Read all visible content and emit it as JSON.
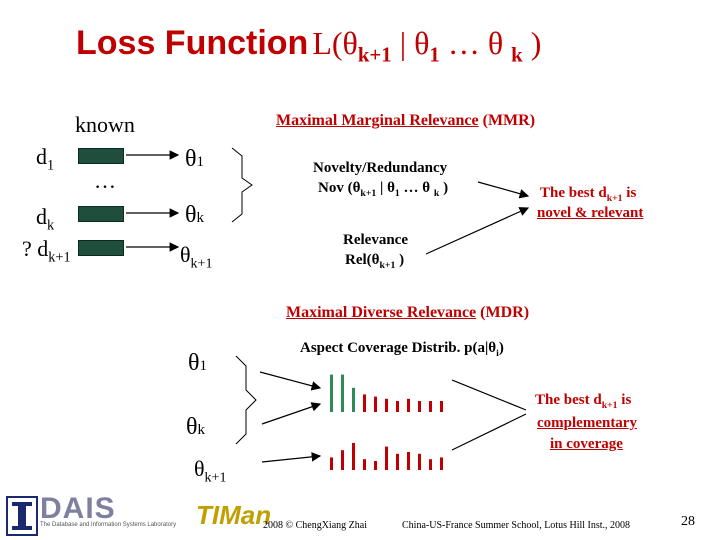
{
  "title": {
    "prefix": "Loss Function",
    "formula_open": "L(θ",
    "sub1": "k+1",
    "mid": "| θ",
    "sub2": "1",
    "dots": "… θ",
    "sub3": "k",
    "close": ")"
  },
  "left": {
    "known": "known",
    "d1": "d",
    "d1_sub": "1",
    "dots": "…",
    "dk": "d",
    "dk_sub": "k",
    "dk1_prefix": "? d",
    "dk1_sub": "k+1"
  },
  "thetas_top": {
    "t1": "θ",
    "t1_sub": "1",
    "tk": "θ",
    "tk_sub": "k",
    "tk1": "θ",
    "tk1_sub": "k+1"
  },
  "mmr": {
    "heading": "Maximal Marginal Relevance",
    "heading_abbr": "(MMR)",
    "novelty_line1": "Novelty/Redundancy",
    "novelty_line2_a": "Nov (θ",
    "novelty_line2_sub1": "k+1",
    "novelty_line2_b": "| θ",
    "novelty_line2_sub2": "1",
    "novelty_line2_c": "… θ",
    "novelty_line2_sub3": "k",
    "novelty_line2_d": ")",
    "relevance_line1": "Relevance",
    "relevance_line2_a": "Rel(θ",
    "relevance_line2_sub": "k+1",
    "relevance_line2_b": ")",
    "best_line1_a": "The best d",
    "best_line1_sub": "k+1",
    "best_line1_b": "is",
    "best_line2": "novel & relevant"
  },
  "mdr": {
    "heading": "Maximal Diverse Relevance",
    "heading_abbr": "(MDR)",
    "aspect_a": "Aspect Coverage Distrib.  p(a|θ",
    "aspect_sub": "i",
    "aspect_b": ")",
    "t1": "θ",
    "t1_sub": "1",
    "tk": "θ",
    "tk_sub": "k",
    "tk1": "θ",
    "tk1_sub": "k+1",
    "best_line1_a": "The best d",
    "best_line1_sub": "k+1",
    "best_line1_b": "is",
    "best_line2": "complementary",
    "best_line3": "in coverage",
    "bars_top": [
      0.85,
      0.85,
      0.55,
      0.4,
      0.35,
      0.3,
      0.25,
      0.3,
      0.25,
      0.25,
      0.25
    ],
    "bars_bottom": [
      0.35,
      0.55,
      0.75,
      0.3,
      0.25,
      0.65,
      0.45,
      0.5,
      0.45,
      0.3,
      0.35
    ]
  },
  "footer": {
    "logo1": "DAIS",
    "logo1_tag": "The Database and Information Systems Laboratory",
    "logo2": "TIMan",
    "copyright": "2008 © ChengXiang Zhai",
    "event": "China-US-France Summer School, Lotus Hill Inst., 2008",
    "page": "28"
  },
  "colors": {
    "accent_red": "#c00000",
    "doc_green": "#1f4e3d",
    "bar_green": "#2e8b57",
    "bar_red": "#c00000"
  }
}
